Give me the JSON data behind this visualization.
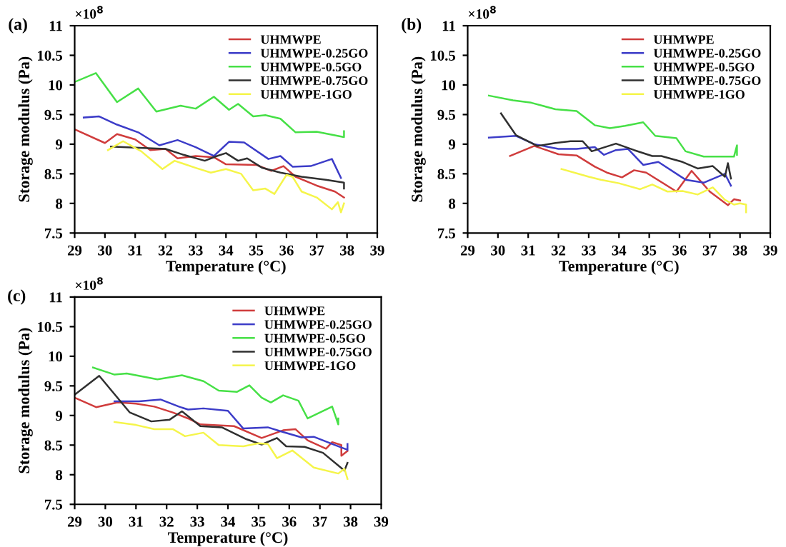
{
  "chart_data": [
    {
      "type": "line",
      "ylabel": "Storage modulus (Pa)",
      "xlabel": "Temperature (°C)",
      "annotations": [
        "(a)",
        "×10$^{8}$"
      ],
      "xlim": [
        29,
        39
      ],
      "xticks": [
        29,
        30,
        31,
        32,
        33,
        34,
        35,
        36,
        37,
        38,
        39
      ],
      "ylim": [
        7.5,
        11
      ],
      "yticks": [
        7.5,
        8,
        8.5,
        9,
        9.5,
        10,
        10.5,
        11
      ],
      "legend": "top right",
      "grid": false,
      "marker": "none",
      "line_style": "solid",
      "series": [
        {
          "name": "UHMWPE",
          "color": "#d03c3c",
          "x": [
            29,
            30,
            30.4,
            31,
            31.5,
            32,
            32.4,
            33,
            33.6,
            34,
            35,
            35.5,
            35.9,
            36.3,
            37,
            37.6,
            37.9
          ],
          "values": [
            9.25,
            9.02,
            9.17,
            9.08,
            8.9,
            8.92,
            8.76,
            8.8,
            8.78,
            8.66,
            8.65,
            8.55,
            8.63,
            8.45,
            8.3,
            8.2,
            8.1
          ]
        },
        {
          "name": "UHMWPE-0.25GO",
          "color": "#3c3cc8",
          "x": [
            29.3,
            29.8,
            30.4,
            31.1,
            31.8,
            32.4,
            33,
            33.6,
            34.1,
            34.6,
            35.4,
            35.8,
            36.2,
            36.8,
            37.5,
            37.8
          ],
          "values": [
            9.45,
            9.47,
            9.33,
            9.2,
            8.98,
            9.07,
            8.95,
            8.8,
            9.04,
            9.03,
            8.75,
            8.8,
            8.62,
            8.63,
            8.75,
            8.43
          ]
        },
        {
          "name": "UHMWPE-0.5GO",
          "color": "#46e046",
          "x": [
            29,
            29.7,
            30.4,
            31.1,
            31.7,
            32.5,
            33,
            33.6,
            34.1,
            34.4,
            34.9,
            35.3,
            35.8,
            36.3,
            37,
            37.9,
            37.9
          ],
          "values": [
            10.05,
            10.2,
            9.71,
            9.94,
            9.55,
            9.65,
            9.6,
            9.8,
            9.58,
            9.68,
            9.47,
            9.49,
            9.43,
            9.2,
            9.21,
            9.12,
            9.22
          ]
        },
        {
          "name": "UHMWPE-0.75GO",
          "color": "#303030",
          "x": [
            30.2,
            31,
            32,
            32.6,
            33.3,
            33.7,
            34,
            34.4,
            34.7,
            35.2,
            35.8,
            36.5,
            37.3,
            37.9,
            37.9
          ],
          "values": [
            8.96,
            8.94,
            8.92,
            8.82,
            8.72,
            8.8,
            8.85,
            8.72,
            8.76,
            8.6,
            8.52,
            8.45,
            8.4,
            8.35,
            8.25
          ]
        },
        {
          "name": "UHMWPE-1GO",
          "color": "#f5f54a",
          "x": [
            30.1,
            30.6,
            31.2,
            31.9,
            32.3,
            33,
            33.5,
            34,
            34.5,
            34.9,
            35.3,
            35.6,
            36,
            36.2,
            36.5,
            37,
            37.5,
            37.7,
            37.8,
            37.9
          ],
          "values": [
            8.9,
            9.05,
            8.88,
            8.58,
            8.72,
            8.6,
            8.52,
            8.58,
            8.5,
            8.22,
            8.25,
            8.16,
            8.48,
            8.45,
            8.2,
            8.1,
            7.9,
            8.02,
            7.85,
            8.0
          ]
        }
      ]
    },
    {
      "type": "line",
      "ylabel": "Storage modulus (Pa)",
      "xlabel": "Temperature (°C)",
      "annotations": [
        "(b)",
        "×10$^{8}$"
      ],
      "xlim": [
        29,
        39
      ],
      "xticks": [
        29,
        30,
        31,
        32,
        33,
        34,
        35,
        36,
        37,
        38,
        39
      ],
      "ylim": [
        7.5,
        11
      ],
      "yticks": [
        7.5,
        8,
        8.5,
        9,
        9.5,
        10,
        10.5,
        11
      ],
      "legend": "top right",
      "grid": false,
      "marker": "none",
      "line_style": "solid",
      "series": [
        {
          "name": "UHMWPE",
          "color": "#d03c3c",
          "x": [
            30.4,
            31.2,
            32,
            32.6,
            33.2,
            33.6,
            34.1,
            34.5,
            34.9,
            35.9,
            36.4,
            37,
            37.6,
            37.8,
            38
          ],
          "values": [
            8.8,
            8.97,
            8.83,
            8.81,
            8.62,
            8.52,
            8.44,
            8.56,
            8.52,
            8.2,
            8.55,
            8.2,
            7.97,
            8.07,
            8.05
          ]
        },
        {
          "name": "UHMWPE-0.25GO",
          "color": "#3c3cc8",
          "x": [
            29.7,
            30.6,
            31.2,
            32,
            32.6,
            33.2,
            33.5,
            33.9,
            34.3,
            34.8,
            35.3,
            36.2,
            36.8,
            37.5,
            37.7
          ],
          "values": [
            9.11,
            9.14,
            9.0,
            8.92,
            8.92,
            8.95,
            8.82,
            8.9,
            8.92,
            8.65,
            8.7,
            8.4,
            8.35,
            8.5,
            8.3
          ]
        },
        {
          "name": "UHMWPE-0.5GO",
          "color": "#46e046",
          "x": [
            29.7,
            30.5,
            31.1,
            31.9,
            32.6,
            33.2,
            33.7,
            34.2,
            34.8,
            35.2,
            35.9,
            36.2,
            36.8,
            37.3,
            37.8,
            37.9,
            37.9
          ],
          "values": [
            9.82,
            9.74,
            9.7,
            9.59,
            9.56,
            9.32,
            9.27,
            9.31,
            9.37,
            9.14,
            9.1,
            8.88,
            8.79,
            8.79,
            8.79,
            8.98,
            8.82
          ]
        },
        {
          "name": "UHMWPE-0.75GO",
          "color": "#303030",
          "x": [
            30.1,
            30.6,
            31.3,
            31.9,
            32.4,
            32.8,
            33.1,
            33.9,
            34.5,
            35.1,
            35.4,
            36.1,
            36.6,
            37.1,
            37.5,
            37.6,
            37.7
          ],
          "values": [
            9.52,
            9.15,
            8.97,
            9.02,
            9.05,
            9.05,
            8.88,
            9.01,
            8.9,
            8.8,
            8.8,
            8.7,
            8.59,
            8.63,
            8.45,
            8.68,
            8.42
          ]
        },
        {
          "name": "UHMWPE-1GO",
          "color": "#f5f54a",
          "x": [
            32.1,
            33,
            33.4,
            34,
            34.7,
            35.1,
            35.6,
            36.1,
            36.6,
            37.1,
            37.5,
            37.8,
            38,
            38.2,
            38.2
          ],
          "values": [
            8.58,
            8.45,
            8.4,
            8.34,
            8.24,
            8.32,
            8.2,
            8.21,
            8.15,
            8.27,
            8.06,
            7.98,
            8.0,
            7.98,
            7.85
          ]
        }
      ]
    },
    {
      "type": "line",
      "ylabel": "Storage modulus (Pa)",
      "xlabel": "Temperature (°C)",
      "annotations": [
        "(c)",
        "×10$^{8}$"
      ],
      "xlim": [
        29,
        39
      ],
      "xticks": [
        29,
        30,
        31,
        32,
        33,
        34,
        35,
        36,
        37,
        38,
        39
      ],
      "ylim": [
        7.5,
        11
      ],
      "yticks": [
        7.5,
        8,
        8.5,
        9,
        9.5,
        10,
        10.5,
        11
      ],
      "legend": "top right",
      "grid": false,
      "marker": "none",
      "line_style": "solid",
      "series": [
        {
          "name": "UHMWPE",
          "color": "#d03c3c",
          "x": [
            29,
            29.7,
            30.4,
            31,
            31.6,
            32.2,
            32.7,
            33.1,
            34.2,
            35.1,
            35.8,
            36.2,
            36.6,
            37.2,
            37.4,
            37.7,
            37.7,
            37.9
          ],
          "values": [
            9.3,
            9.14,
            9.22,
            9.2,
            9.15,
            9.05,
            8.95,
            8.85,
            8.82,
            8.62,
            8.75,
            8.77,
            8.58,
            8.44,
            8.55,
            8.5,
            8.32,
            8.4
          ]
        },
        {
          "name": "UHMWPE-0.25GO",
          "color": "#3c3cc8",
          "x": [
            30.3,
            31.1,
            31.8,
            32.4,
            32.7,
            33.2,
            34,
            34.5,
            35.3,
            35.8,
            36.4,
            36.8,
            37.5,
            37.9,
            37.9
          ],
          "values": [
            9.24,
            9.24,
            9.27,
            9.15,
            9.1,
            9.12,
            9.08,
            8.78,
            8.8,
            8.72,
            8.63,
            8.64,
            8.5,
            8.42,
            8.52
          ]
        },
        {
          "name": "UHMWPE-0.5GO",
          "color": "#46e046",
          "x": [
            29.6,
            30.3,
            30.7,
            31.7,
            32.5,
            33.2,
            33.7,
            34.3,
            34.7,
            35.1,
            35.4,
            35.8,
            36.3,
            36.6,
            37.4,
            37.6,
            37.6
          ],
          "values": [
            9.81,
            9.69,
            9.71,
            9.61,
            9.68,
            9.58,
            9.42,
            9.4,
            9.51,
            9.3,
            9.22,
            9.34,
            9.25,
            8.95,
            9.15,
            8.85,
            8.95
          ]
        },
        {
          "name": "UHMWPE-0.75GO",
          "color": "#303030",
          "x": [
            29,
            29.8,
            30.8,
            31.5,
            32.1,
            32.5,
            33.1,
            33.8,
            34.6,
            35.1,
            35.6,
            35.9,
            36.5,
            37.1,
            37.8,
            37.9
          ],
          "values": [
            9.35,
            9.67,
            9.05,
            8.9,
            8.93,
            9.07,
            8.82,
            8.8,
            8.6,
            8.51,
            8.62,
            8.48,
            8.47,
            8.37,
            8.07,
            8.2
          ]
        },
        {
          "name": "UHMWPE-1GO",
          "color": "#f5f54a",
          "x": [
            30.3,
            31,
            31.6,
            32.2,
            32.6,
            33.2,
            33.7,
            34.5,
            35,
            35.3,
            35.6,
            36.1,
            36.8,
            37.6,
            37.8,
            37.9
          ],
          "values": [
            8.89,
            8.84,
            8.77,
            8.77,
            8.65,
            8.71,
            8.5,
            8.48,
            8.53,
            8.52,
            8.28,
            8.41,
            8.12,
            8.02,
            8.1,
            7.93
          ]
        }
      ]
    }
  ]
}
